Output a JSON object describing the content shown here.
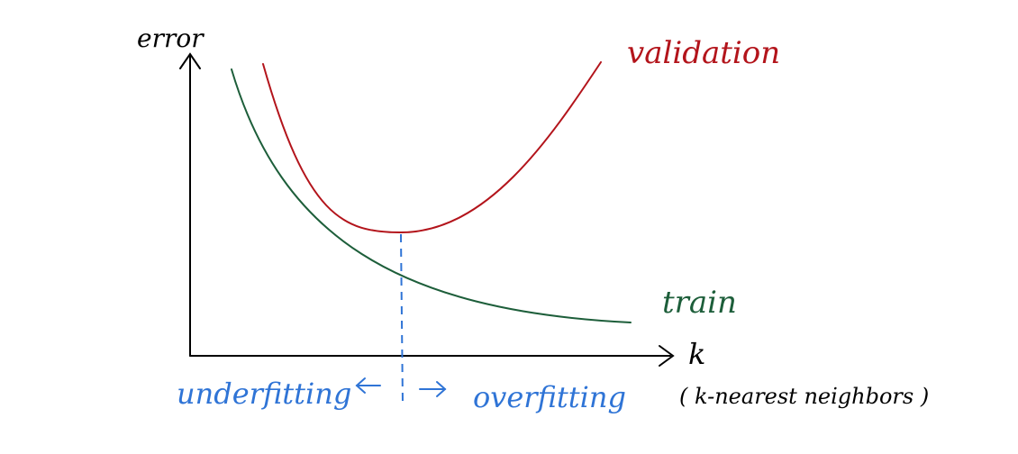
{
  "labels": {
    "y_axis": "error",
    "x_axis": "k",
    "x_axis_note": "( k-nearest neighbors )",
    "validation_curve": "validation",
    "train_curve": "train",
    "left_region": "underfitting",
    "right_region": "overfitting"
  },
  "colors": {
    "axis": "#000000",
    "validation": "#b3141b",
    "train": "#1d5e3a",
    "annotation": "#2f74d6"
  }
}
